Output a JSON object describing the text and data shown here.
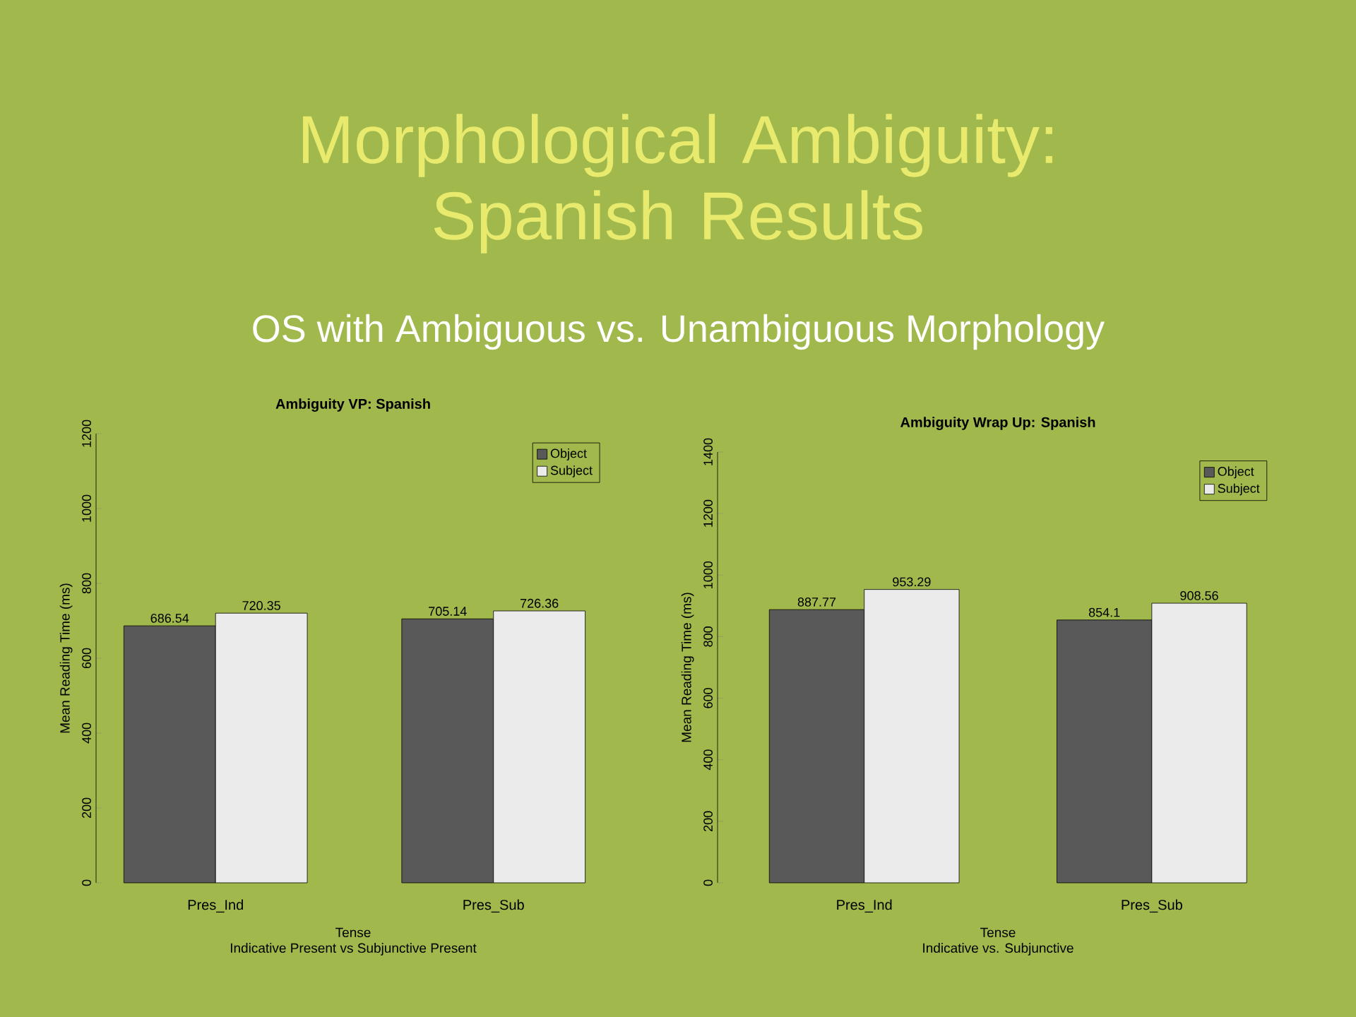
{
  "chart_data": [
    {
      "type": "other",
      "title": "Morphological Ambiguity: Spanish Results",
      "subtitle": "OS with Ambiguous vs. Unambiguous Morphology"
    },
    {
      "type": "bar",
      "title": "Ambiguity VP: Spanish",
      "xlabel": "Tense",
      "ylabel": "Mean Reading Time (ms)",
      "annotations": [
        "Indicative Present vs Subjunctive Present"
      ],
      "categories": [
        "Pres_Ind",
        "Pres_Sub"
      ],
      "series": [
        {
          "name": "Object",
          "color": "#595959",
          "values": [
            686.54,
            705.14
          ]
        },
        {
          "name": "Subject",
          "color": "#ebebeb",
          "values": [
            720.35,
            726.36
          ]
        }
      ],
      "ylim": [
        0,
        1200
      ],
      "yticks": [
        0,
        200,
        400,
        600,
        800,
        1000,
        1200
      ],
      "data_labels": true,
      "legend": "top right"
    },
    {
      "type": "bar",
      "title": "Ambiguity Wrap Up: Spanish",
      "xlabel": "Tense",
      "ylabel": "Mean Reading Time (ms)",
      "annotations": [
        "Indicative vs. Subjunctive"
      ],
      "categories": [
        "Pres_Ind",
        "Pres_Sub"
      ],
      "series": [
        {
          "name": "Object",
          "color": "#595959",
          "values": [
            887.77,
            854.1
          ]
        },
        {
          "name": "Subject",
          "color": "#ebebeb",
          "values": [
            953.29,
            908.56
          ]
        }
      ],
      "ylim": [
        0,
        1400
      ],
      "yticks": [
        0,
        200,
        400,
        600,
        800,
        1000,
        1200,
        1400
      ],
      "data_labels": true,
      "legend": "top right"
    }
  ]
}
